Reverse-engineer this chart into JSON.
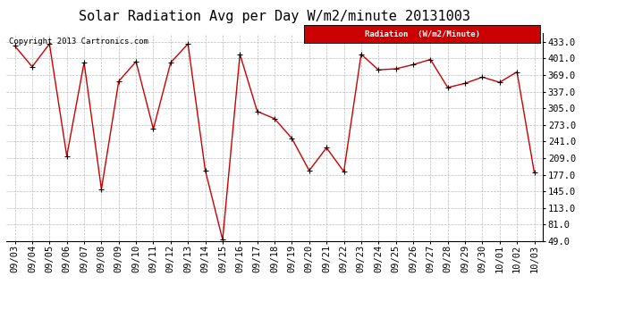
{
  "title": "Solar Radiation Avg per Day W/m2/minute 20131003",
  "copyright_text": "Copyright 2013 Cartronics.com",
  "legend_label": "Radiation  (W/m2/Minute)",
  "x_labels": [
    "09/03",
    "09/04",
    "09/05",
    "09/06",
    "09/07",
    "09/08",
    "09/09",
    "09/10",
    "09/11",
    "09/12",
    "09/13",
    "09/14",
    "09/15",
    "09/16",
    "09/17",
    "09/18",
    "09/19",
    "09/20",
    "09/21",
    "09/22",
    "09/23",
    "09/24",
    "09/25",
    "09/26",
    "09/27",
    "09/28",
    "09/29",
    "09/30",
    "10/01",
    "10/02",
    "10/03"
  ],
  "y_values": [
    425,
    385,
    429,
    213,
    393,
    149,
    357,
    395,
    265,
    393,
    429,
    185,
    52,
    409,
    299,
    285,
    247,
    185,
    229,
    183,
    409,
    379,
    381,
    389,
    399,
    345,
    353,
    365,
    355,
    375,
    181
  ],
  "y_ticks": [
    49.0,
    81.0,
    113.0,
    145.0,
    177.0,
    209.0,
    241.0,
    273.0,
    305.0,
    337.0,
    369.0,
    401.0,
    433.0
  ],
  "y_min": 49.0,
  "y_max": 449.0,
  "line_color": "#cc0000",
  "marker_color": "#000000",
  "bg_color": "#ffffff",
  "grid_color": "#bbbbbb",
  "legend_bg": "#cc0000",
  "legend_text_color": "#ffffff",
  "title_fontsize": 11,
  "tick_fontsize": 7.5,
  "copyright_fontsize": 6.5
}
